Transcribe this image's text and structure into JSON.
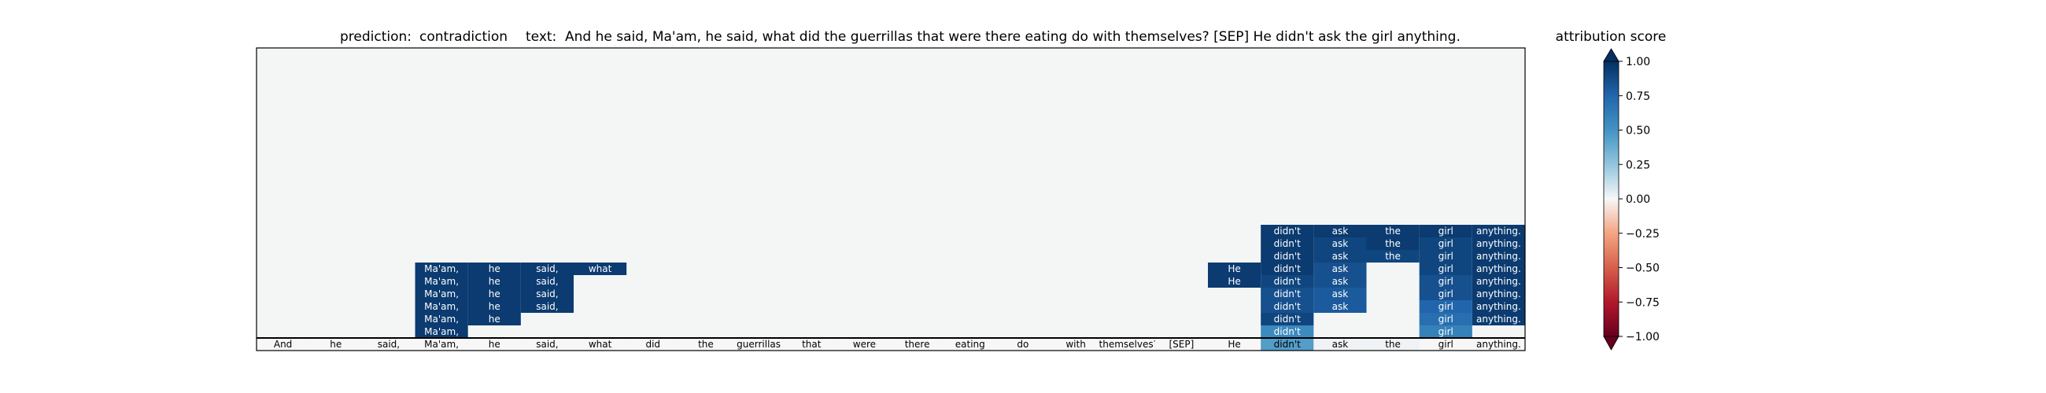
{
  "title": {
    "prediction_label": "prediction:",
    "prediction_value": "contradiction",
    "text_label": "text:",
    "text_value": "And he said, Ma'am, he said, what did the guerrillas that were there eating do with themselves? [SEP] He didn't ask the girl anything."
  },
  "colorbar": {
    "title": "attribution score",
    "ticks": [
      "1.00",
      "0.75",
      "0.50",
      "0.25",
      "0.00",
      "−0.25",
      "−0.50",
      "−0.75",
      "−1.00"
    ],
    "tick_values": [
      1.0,
      0.75,
      0.5,
      0.25,
      0.0,
      -0.25,
      -0.5,
      -0.75,
      -1.0
    ],
    "colors": {
      "pos_dark": "#053061",
      "pos_mid": "#2166ac",
      "pos_light": "#4393c3",
      "neutral": "#f7f7f7",
      "neg_light": "#f4a582",
      "neg_mid": "#d6604d",
      "neg_dark": "#67001f",
      "empty_background": "#f4f6f6"
    }
  },
  "chart_data": {
    "type": "heatmap",
    "title": "prediction: contradiction text: And he said, Ma'am, he said, what did the guerrillas that were there eating do with themselves? [SEP] He didn't ask the girl anything.",
    "tokens": [
      "And",
      "he",
      "said,",
      "Ma'am,",
      "he",
      "said,",
      "what",
      "did",
      "the",
      "guerrillas",
      "that",
      "were",
      "there",
      "eating",
      "do",
      "with",
      "themselves?",
      "[SEP]",
      "He",
      "didn't",
      "ask",
      "the",
      "girl",
      "anything."
    ],
    "vmin": -1.0,
    "vmax": 1.0,
    "colormap": "RdBu",
    "rows": 23,
    "bottom_row": {
      "label_tokens": [
        "And",
        "he",
        "said,",
        "Ma'am,",
        "he",
        "said,",
        "what",
        "did",
        "the",
        "guerrillas",
        "that",
        "were",
        "there",
        "eating",
        "do",
        "with",
        "themselves?",
        "[SEP]",
        "He",
        "didn't",
        "ask",
        "the",
        "girl",
        "anything."
      ],
      "values": [
        0.0,
        0.0,
        0.0,
        0.0,
        0.0,
        0.0,
        0.0,
        0.0,
        0.0,
        0.0,
        0.0,
        0.0,
        0.0,
        0.0,
        0.0,
        0.0,
        0.0,
        0.0,
        0.0,
        0.45,
        0.02,
        0.02,
        0.0,
        0.0
      ]
    },
    "stacked_cells": [
      {
        "token": 3,
        "level": 1,
        "value": 0.95
      },
      {
        "token": 3,
        "level": 2,
        "value": 0.95
      },
      {
        "token": 3,
        "level": 3,
        "value": 0.95
      },
      {
        "token": 3,
        "level": 4,
        "value": 0.95
      },
      {
        "token": 3,
        "level": 5,
        "value": 0.95
      },
      {
        "token": 3,
        "level": 6,
        "value": 0.95
      },
      {
        "token": 4,
        "level": 2,
        "value": 0.95
      },
      {
        "token": 4,
        "level": 3,
        "value": 0.95
      },
      {
        "token": 4,
        "level": 4,
        "value": 0.95
      },
      {
        "token": 4,
        "level": 5,
        "value": 0.95
      },
      {
        "token": 4,
        "level": 6,
        "value": 0.95
      },
      {
        "token": 5,
        "level": 3,
        "value": 0.95
      },
      {
        "token": 5,
        "level": 4,
        "value": 0.95
      },
      {
        "token": 5,
        "level": 5,
        "value": 0.95
      },
      {
        "token": 5,
        "level": 6,
        "value": 0.95
      },
      {
        "token": 6,
        "level": 6,
        "value": 0.95
      },
      {
        "token": 18,
        "level": 5,
        "value": 0.95
      },
      {
        "token": 18,
        "level": 6,
        "value": 0.95
      },
      {
        "token": 19,
        "level": 1,
        "value": 0.55
      },
      {
        "token": 19,
        "level": 2,
        "value": 0.9
      },
      {
        "token": 19,
        "level": 3,
        "value": 0.85
      },
      {
        "token": 19,
        "level": 4,
        "value": 0.85
      },
      {
        "token": 19,
        "level": 5,
        "value": 0.9
      },
      {
        "token": 19,
        "level": 6,
        "value": 0.95
      },
      {
        "token": 19,
        "level": 7,
        "value": 0.95
      },
      {
        "token": 19,
        "level": 8,
        "value": 0.95
      },
      {
        "token": 19,
        "level": 9,
        "value": 0.95
      },
      {
        "token": 20,
        "level": 3,
        "value": 0.8
      },
      {
        "token": 20,
        "level": 4,
        "value": 0.8
      },
      {
        "token": 20,
        "level": 5,
        "value": 0.85
      },
      {
        "token": 20,
        "level": 6,
        "value": 0.85
      },
      {
        "token": 20,
        "level": 7,
        "value": 0.9
      },
      {
        "token": 20,
        "level": 8,
        "value": 0.9
      },
      {
        "token": 20,
        "level": 9,
        "value": 0.95
      },
      {
        "token": 21,
        "level": 7,
        "value": 0.9
      },
      {
        "token": 21,
        "level": 8,
        "value": 0.95
      },
      {
        "token": 21,
        "level": 9,
        "value": 0.95
      },
      {
        "token": 22,
        "level": 1,
        "value": 0.6
      },
      {
        "token": 22,
        "level": 2,
        "value": 0.7
      },
      {
        "token": 22,
        "level": 3,
        "value": 0.75
      },
      {
        "token": 22,
        "level": 4,
        "value": 0.85
      },
      {
        "token": 22,
        "level": 5,
        "value": 0.85
      },
      {
        "token": 22,
        "level": 6,
        "value": 0.9
      },
      {
        "token": 22,
        "level": 7,
        "value": 0.9
      },
      {
        "token": 22,
        "level": 8,
        "value": 0.9
      },
      {
        "token": 22,
        "level": 9,
        "value": 0.95
      },
      {
        "token": 23,
        "level": 2,
        "value": 0.95
      },
      {
        "token": 23,
        "level": 3,
        "value": 0.95
      },
      {
        "token": 23,
        "level": 4,
        "value": 0.95
      },
      {
        "token": 23,
        "level": 5,
        "value": 0.95
      },
      {
        "token": 23,
        "level": 6,
        "value": 0.95
      },
      {
        "token": 23,
        "level": 7,
        "value": 0.95
      },
      {
        "token": 23,
        "level": 8,
        "value": 0.95
      },
      {
        "token": 23,
        "level": 9,
        "value": 0.95
      }
    ],
    "colorbar_range": [
      -1.0,
      1.0
    ],
    "grid": false,
    "legend": "right (colorbar)"
  }
}
